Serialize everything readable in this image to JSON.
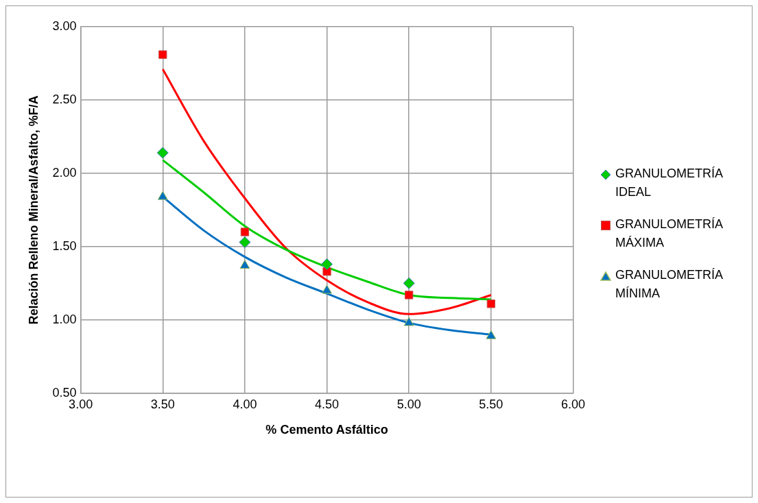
{
  "chart_data": {
    "type": "scatter",
    "xlabel": "% Cemento Asfáltico",
    "ylabel": "Relación Relleno Mineral/Asfalto, %F/A",
    "x": [
      3.5,
      4.0,
      4.5,
      5.0,
      5.5
    ],
    "series": [
      {
        "name": "GRANULOMETRÍA IDEAL",
        "color": "#00cc00",
        "marker": "diamond",
        "values": [
          2.14,
          1.53,
          1.38,
          1.25,
          null
        ]
      },
      {
        "name": "GRANULOMETRÍA MÁXIMA",
        "color": "#ff0000",
        "marker": "square",
        "values": [
          2.81,
          1.6,
          1.33,
          1.17,
          1.11
        ]
      },
      {
        "name": "GRANULOMETRÍA MÍNIMA",
        "color": "#0070c0",
        "marker": "triangle",
        "values": [
          1.84,
          1.37,
          1.2,
          0.98,
          0.89
        ]
      },
      {
        "type": "line",
        "color": "#00cc00",
        "marker": "none",
        "x": [
          3.5,
          3.75,
          4.0,
          4.25,
          4.5,
          4.75,
          5.0,
          5.25,
          5.5
        ],
        "values": [
          2.09,
          1.87,
          1.64,
          1.48,
          1.36,
          1.26,
          1.17,
          1.15,
          1.14
        ]
      },
      {
        "type": "line",
        "color": "#ff0000",
        "marker": "none",
        "x": [
          3.5,
          3.75,
          4.0,
          4.25,
          4.5,
          4.75,
          5.0,
          5.25,
          5.5
        ],
        "values": [
          2.71,
          2.22,
          1.83,
          1.49,
          1.27,
          1.12,
          1.04,
          1.08,
          1.17
        ]
      },
      {
        "type": "line",
        "color": "#0070c0",
        "marker": "none",
        "x": [
          3.5,
          3.75,
          4.0,
          4.25,
          4.5,
          4.75,
          5.0,
          5.25,
          5.5
        ],
        "values": [
          1.84,
          1.61,
          1.43,
          1.29,
          1.18,
          1.07,
          0.98,
          0.93,
          0.9
        ]
      }
    ],
    "xlim": [
      3,
      6
    ],
    "xticks": [
      {
        "value": 3,
        "label": "3.00"
      },
      {
        "value": 3.5,
        "label": "3.50"
      },
      {
        "value": 4,
        "label": "4.00"
      },
      {
        "value": 4.5,
        "label": "4.50"
      },
      {
        "value": 5,
        "label": "5.00"
      },
      {
        "value": 5.5,
        "label": "5.50"
      },
      {
        "value": 6,
        "label": "6.00"
      }
    ],
    "ylim": [
      0.5,
      3
    ],
    "yticks": [
      {
        "value": 0.5,
        "label": "0.50"
      },
      {
        "value": 1,
        "label": "1.00"
      },
      {
        "value": 1.5,
        "label": "1.50"
      },
      {
        "value": 2,
        "label": "2.00"
      },
      {
        "value": 2.5,
        "label": "2.50"
      },
      {
        "value": 3,
        "label": "3.00"
      }
    ],
    "grid": true,
    "legend": "right"
  }
}
